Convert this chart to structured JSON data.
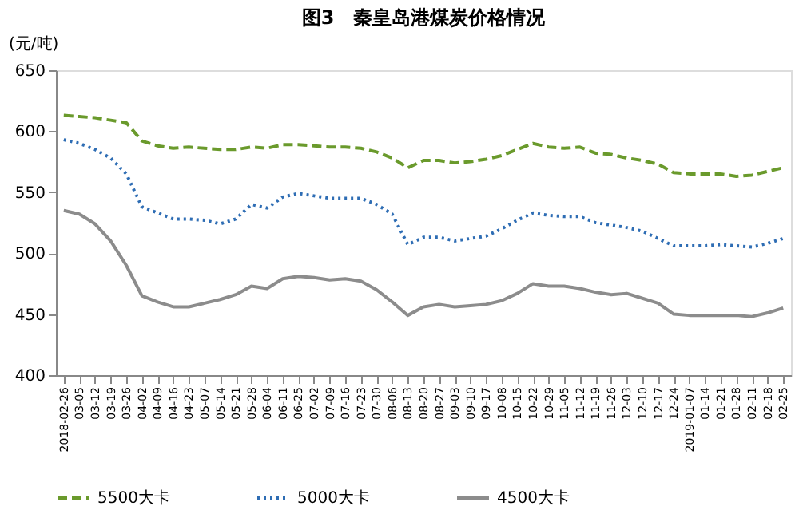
{
  "chart_data": {
    "type": "line",
    "title": "图3　秦皇岛港煤炭价格情况",
    "ylabel": "(元/吨)",
    "categories": [
      "2018-02-26",
      "03-05",
      "03-12",
      "03-19",
      "03-26",
      "04-02",
      "04-09",
      "04-16",
      "04-23",
      "05-07",
      "05-14",
      "05-21",
      "05-28",
      "06-04",
      "06-11",
      "06-25",
      "07-02",
      "07-09",
      "07-16",
      "07-23",
      "07-30",
      "08-06",
      "08-13",
      "08-20",
      "08-27",
      "09-03",
      "09-10",
      "09-17",
      "10-08",
      "10-15",
      "10-22",
      "10-29",
      "11-05",
      "11-12",
      "11-19",
      "11-26",
      "12-03",
      "12-10",
      "12-17",
      "12-24",
      "2019-01-07",
      "01-14",
      "01-21",
      "01-28",
      "02-11",
      "02-18",
      "02-25"
    ],
    "ylim": [
      400,
      650
    ],
    "yticks": [
      400,
      450,
      500,
      550,
      600,
      650
    ],
    "grid": false,
    "legend": "bottom",
    "marker": "none",
    "series": [
      {
        "name": "5500大卡",
        "color": "#6a9a2c",
        "line_style": "dashed",
        "values": [
          613,
          612,
          611,
          609,
          607,
          592,
          588,
          586,
          587,
          586,
          585,
          585,
          587,
          586,
          589,
          589,
          588,
          587,
          587,
          586,
          583,
          578,
          570,
          576,
          576,
          574,
          575,
          577,
          580,
          585,
          590,
          587,
          586,
          587,
          582,
          581,
          578,
          576,
          573,
          566,
          565,
          565,
          565,
          563,
          564,
          567,
          570
        ]
      },
      {
        "name": "5000大卡",
        "color": "#2e6db4",
        "line_style": "dotted",
        "values": [
          593,
          590,
          585,
          578,
          565,
          538,
          533,
          528,
          528,
          527,
          524,
          528,
          540,
          537,
          546,
          549,
          547,
          545,
          545,
          545,
          540,
          532,
          507,
          513,
          513,
          510,
          512,
          514,
          520,
          527,
          533,
          531,
          530,
          530,
          525,
          523,
          521,
          518,
          512,
          506,
          506,
          506,
          507,
          506,
          505,
          508,
          512
        ]
      },
      {
        "name": "4500大卡",
        "color": "#8c8c8c",
        "line_style": "solid",
        "values": [
          535,
          532,
          524,
          510,
          490,
          465,
          460,
          456,
          456,
          459,
          462,
          466,
          473,
          471,
          479,
          481,
          480,
          478,
          479,
          477,
          470,
          460,
          449,
          456,
          458,
          456,
          457,
          458,
          461,
          467,
          475,
          473,
          473,
          471,
          468,
          466,
          467,
          463,
          459,
          450,
          449,
          449,
          449,
          449,
          448,
          451,
          455
        ]
      }
    ]
  }
}
